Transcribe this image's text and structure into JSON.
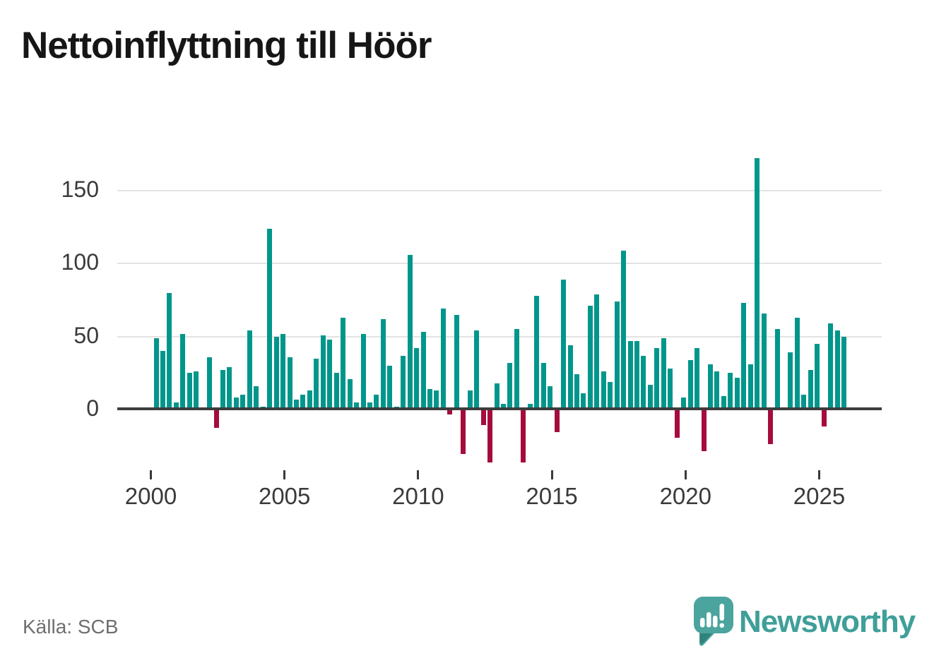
{
  "title": "Nettoinflyttning till Höör",
  "source": "Källa: SCB",
  "branding": {
    "name": "Newsworthy",
    "logo_icon": "speech-bubble-bar-chart-icon"
  },
  "colors": {
    "positive_bar": "#00968b",
    "negative_bar": "#a50c3c",
    "brand_teal": "#4ba49d",
    "brand_text": "#3f9f99",
    "gridline": "#e3e3e3",
    "axis_line": "#3d3d3d",
    "tick_text": "#3a3a3a",
    "title_text": "#161616",
    "source_text": "#6f6f6f",
    "background": "#ffffff"
  },
  "chart_data": {
    "type": "bar",
    "title": "Nettoinflyttning till Höör",
    "xlabel": "",
    "ylabel": "",
    "x_unit": "quarter",
    "start_year": 2000,
    "bars_per_year": 4,
    "x_tick_labels": [
      "2000",
      "2005",
      "2010",
      "2015",
      "2020",
      "2025"
    ],
    "y_ticks": [
      0,
      50,
      100,
      150
    ],
    "ylim": [
      -45,
      185
    ],
    "grid": "horizontal",
    "legend": "none",
    "series": [
      {
        "name": "Nettoinflyttning till Höör (per kvartal)",
        "values": [
          49,
          40,
          80,
          5,
          52,
          25,
          26,
          0,
          36,
          -12,
          27,
          29,
          8,
          10,
          54,
          16,
          2,
          124,
          50,
          52,
          36,
          7,
          10,
          13,
          35,
          51,
          48,
          25,
          63,
          21,
          5,
          52,
          5,
          10,
          62,
          30,
          2,
          37,
          106,
          42,
          53,
          14,
          13,
          69,
          -3,
          65,
          -30,
          13,
          54,
          -10,
          -36,
          18,
          4,
          32,
          55,
          -36,
          4,
          78,
          32,
          16,
          -15,
          89,
          44,
          24,
          11,
          71,
          79,
          26,
          19,
          74,
          109,
          47,
          47,
          37,
          17,
          42,
          49,
          28,
          -19,
          8,
          34,
          42,
          -28,
          31,
          26,
          9,
          25,
          22,
          73,
          31,
          172,
          66,
          -23,
          55,
          0,
          39,
          63,
          10,
          27,
          45,
          -11,
          59,
          54,
          50
        ]
      }
    ]
  }
}
